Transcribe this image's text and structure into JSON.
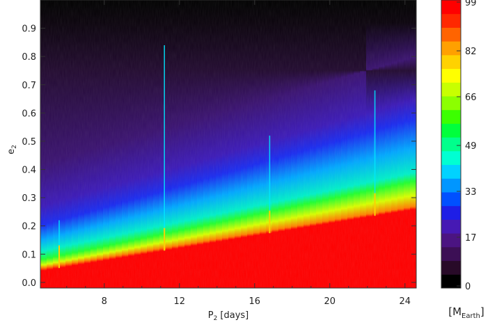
{
  "chart_data": {
    "type": "heatmap",
    "xlabel_main": "P",
    "xlabel_sub": "2",
    "xlabel_rest": " [days]",
    "ylabel_main": "e",
    "ylabel_sub": "2",
    "xlim": [
      4.6,
      24.6
    ],
    "ylim": [
      -0.02,
      1.0
    ],
    "xticks": [
      8,
      12,
      16,
      20,
      24
    ],
    "yticks": [
      0.0,
      0.1,
      0.2,
      0.3,
      0.4,
      0.5,
      0.6,
      0.7,
      0.8,
      0.9
    ],
    "ytick_labels": [
      "0.0",
      "0.1",
      "0.2",
      "0.3",
      "0.4",
      "0.5",
      "0.6",
      "0.7",
      "0.8",
      "0.9"
    ],
    "colorbar": {
      "range": [
        0,
        99
      ],
      "tick_values": [
        0,
        17,
        33,
        49,
        66,
        82,
        99
      ],
      "tick_labels": [
        "0",
        "17",
        "33",
        "49",
        "66",
        "82",
        "99"
      ],
      "unit_main": "[M",
      "unit_sub": "Earth",
      "unit_end": "]",
      "bands": [
        "#000000",
        "#280a28",
        "#3c0f55",
        "#4b1482",
        "#4619b4",
        "#1e1ee6",
        "#0050ff",
        "#0096ff",
        "#00d2ff",
        "#00ffd2",
        "#00ff8c",
        "#00ff3c",
        "#3cff00",
        "#8cff00",
        "#c8ff00",
        "#ffff00",
        "#ffd200",
        "#ffa000",
        "#ff6400",
        "#ff2800",
        "#ff0000"
      ]
    },
    "color_trend": {
      "red_upper_edge": {
        "x": [
          4.6,
          24.6
        ],
        "y": [
          0.04,
          0.26
        ]
      },
      "green_band": {
        "x": [
          4.6,
          24.6
        ],
        "y": [
          0.08,
          0.36
        ]
      },
      "blue_upper_edge": {
        "x": [
          4.6,
          24.6
        ],
        "y": [
          0.22,
          0.6
        ]
      }
    },
    "spikes": [
      {
        "x": 5.6,
        "top": 0.22
      },
      {
        "x": 11.2,
        "top": 0.84
      },
      {
        "x": 16.8,
        "top": 0.52
      },
      {
        "x": 22.4,
        "top": 0.68
      }
    ]
  }
}
